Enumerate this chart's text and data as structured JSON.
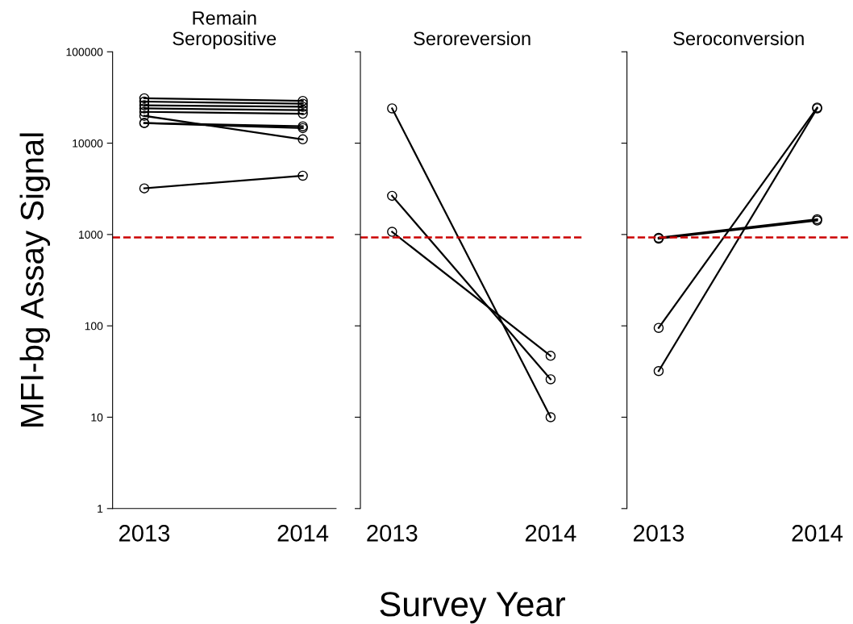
{
  "chart_data": [
    {
      "type": "line",
      "title": "Remain\nSeropositive",
      "ylabel": "MFI-bg Assay Signal",
      "categories": [
        "2013",
        "2014"
      ],
      "log": "y",
      "ylim": [
        1,
        100000
      ],
      "yticks": [
        1,
        10,
        100,
        1000,
        10000,
        100000
      ],
      "marker": "circle",
      "line_style": "solid",
      "ref_lines": [
        {
          "axis": "y",
          "value": 930,
          "color": "#cc0000",
          "line_style": "dashed"
        }
      ],
      "series": [
        {
          "color": "#000000",
          "values": [
            31000,
            29000
          ]
        },
        {
          "color": "#000000",
          "values": [
            28500,
            27000
          ]
        },
        {
          "color": "#000000",
          "values": [
            26000,
            25000
          ]
        },
        {
          "color": "#000000",
          "values": [
            24000,
            23000
          ]
        },
        {
          "color": "#000000",
          "values": [
            22000,
            21000
          ]
        },
        {
          "color": "#000000",
          "values": [
            19900,
            11000
          ]
        },
        {
          "color": "#000000",
          "values": [
            16600,
            15300
          ]
        },
        {
          "color": "#000000",
          "values": [
            16600,
            14600
          ]
        },
        {
          "color": "#000000",
          "values": [
            3200,
            4400
          ]
        }
      ]
    },
    {
      "type": "line",
      "title": "Seroreversion",
      "xlabel": "Survey Year",
      "categories": [
        "2013",
        "2014"
      ],
      "log": "y",
      "ylim": [
        1,
        100000
      ],
      "yticks": [
        1,
        10,
        100,
        1000,
        10000,
        100000
      ],
      "tick_labels": "x",
      "marker": "circle",
      "line_style": "solid",
      "ref_lines": [
        {
          "axis": "y",
          "value": 930,
          "color": "#cc0000",
          "line_style": "dashed"
        }
      ],
      "series": [
        {
          "color": "#000000",
          "values": [
            24000,
            10
          ]
        },
        {
          "color": "#000000",
          "values": [
            2650,
            26
          ]
        },
        {
          "color": "#000000",
          "values": [
            1070,
            47
          ]
        }
      ]
    },
    {
      "type": "line",
      "title": "Seroconversion",
      "categories": [
        "2013",
        "2014"
      ],
      "log": "y",
      "ylim": [
        1,
        100000
      ],
      "yticks": [
        1,
        10,
        100,
        1000,
        10000,
        100000
      ],
      "tick_labels": "x",
      "marker": "circle",
      "line_style": "solid",
      "ref_lines": [
        {
          "axis": "y",
          "value": 930,
          "color": "#cc0000",
          "line_style": "dashed"
        }
      ],
      "series": [
        {
          "color": "#000000",
          "values": [
            920,
            1470
          ]
        },
        {
          "color": "#000000",
          "values": [
            900,
            1420
          ]
        },
        {
          "color": "#000000",
          "values": [
            95,
            24500
          ]
        },
        {
          "color": "#000000",
          "values": [
            32,
            24000
          ]
        }
      ]
    }
  ]
}
